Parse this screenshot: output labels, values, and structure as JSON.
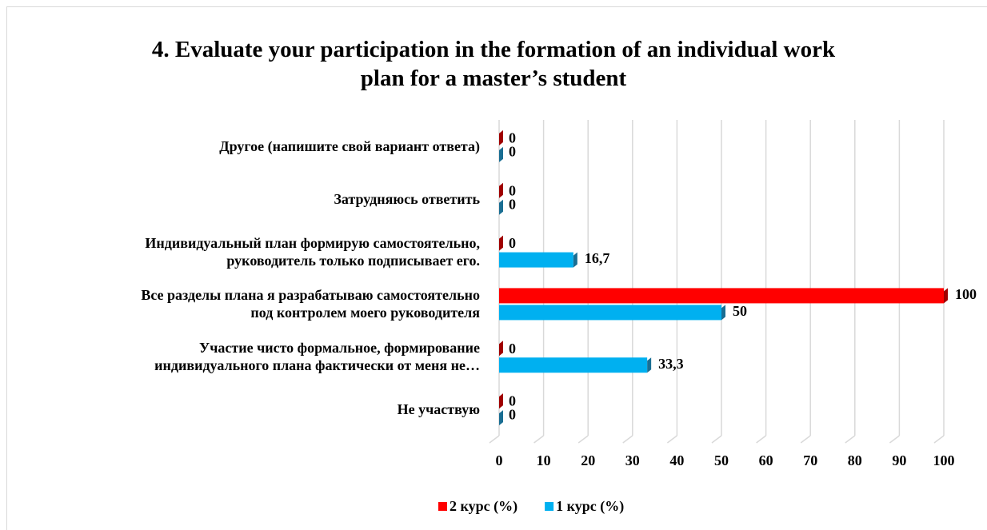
{
  "chart_data": {
    "type": "bar",
    "orientation": "horizontal",
    "title": "4. Evaluate your participation in the formation of an individual work\nplan for a master’s student",
    "categories": [
      "Другое (напишите свой вариант ответа)",
      "Затрудняюсь ответить",
      "Индивидуальный план формирую самостоятельно,\nруководитель только подписывает его.",
      "Все разделы плана я разрабатываю самостоятельно\nпод контролем моего руководителя",
      "Участие чисто формальное, формирование\nиндивидуального плана фактически от меня не…",
      "Не участвую"
    ],
    "series": [
      {
        "name": "2 курс (%)",
        "color": "#ff0000",
        "side_color": "#a00000",
        "values": [
          0,
          0,
          0,
          100,
          0,
          0
        ]
      },
      {
        "name": "1 курс (%)",
        "color": "#00b0f0",
        "side_color": "#1a6e93",
        "values": [
          0,
          0,
          16.7,
          50,
          33.3,
          0
        ],
        "value_labels": [
          "0",
          "0",
          "16,7",
          "50",
          "33,3",
          "0"
        ]
      }
    ],
    "xlim": [
      0,
      100
    ],
    "xticks": [
      0,
      10,
      20,
      30,
      40,
      50,
      60,
      70,
      80,
      90,
      100
    ],
    "grid": true,
    "legend": "bottom"
  }
}
